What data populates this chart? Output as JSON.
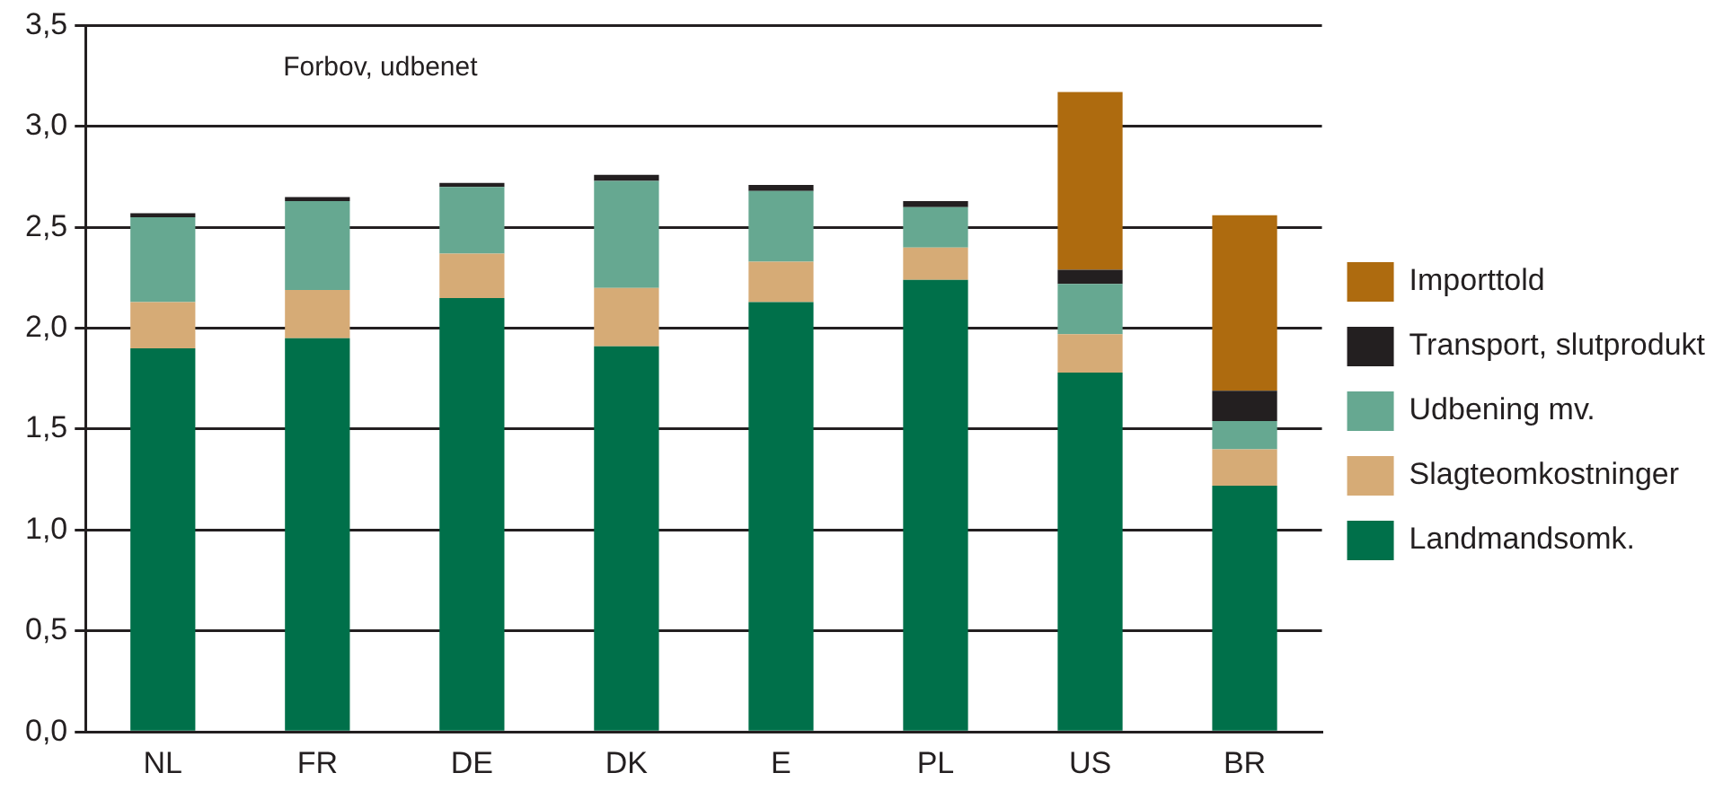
{
  "chart_data": {
    "type": "bar",
    "stacked": true,
    "categories": [
      "NL",
      "FR",
      "DE",
      "DK",
      "E",
      "PL",
      "US",
      "BR"
    ],
    "series": [
      {
        "name": "Landmandsomk.",
        "color": "#00704a",
        "values": [
          1.9,
          1.95,
          2.15,
          1.91,
          2.13,
          2.24,
          1.78,
          1.22
        ]
      },
      {
        "name": "Slagteomkostninger",
        "color": "#d6ab76",
        "values": [
          0.23,
          0.24,
          0.22,
          0.29,
          0.2,
          0.16,
          0.19,
          0.18
        ]
      },
      {
        "name": "Udbening mv.",
        "color": "#66a891",
        "values": [
          0.42,
          0.44,
          0.33,
          0.53,
          0.35,
          0.2,
          0.25,
          0.14
        ]
      },
      {
        "name": "Transport, slutprodukt",
        "color": "#231f20",
        "values": [
          0.02,
          0.02,
          0.02,
          0.03,
          0.03,
          0.03,
          0.07,
          0.15
        ]
      },
      {
        "name": "Importtold",
        "color": "#ae6b0f",
        "values": [
          null,
          null,
          null,
          null,
          null,
          null,
          0.88,
          0.87
        ]
      }
    ],
    "ylim": [
      0,
      3.5
    ],
    "yticks": [
      {
        "value": 0,
        "label": "0,0"
      },
      {
        "value": 0.5,
        "label": "0,5"
      },
      {
        "value": 1,
        "label": "1,0"
      },
      {
        "value": 1.5,
        "label": "1,5"
      },
      {
        "value": 2,
        "label": "2,0"
      },
      {
        "value": 2.5,
        "label": "2,5"
      },
      {
        "value": 3,
        "label": "3,0"
      },
      {
        "value": 3.5,
        "label": "3,5"
      }
    ],
    "grid": "y",
    "legend": "right",
    "annotations": [
      "Forbov, udbenet"
    ]
  }
}
